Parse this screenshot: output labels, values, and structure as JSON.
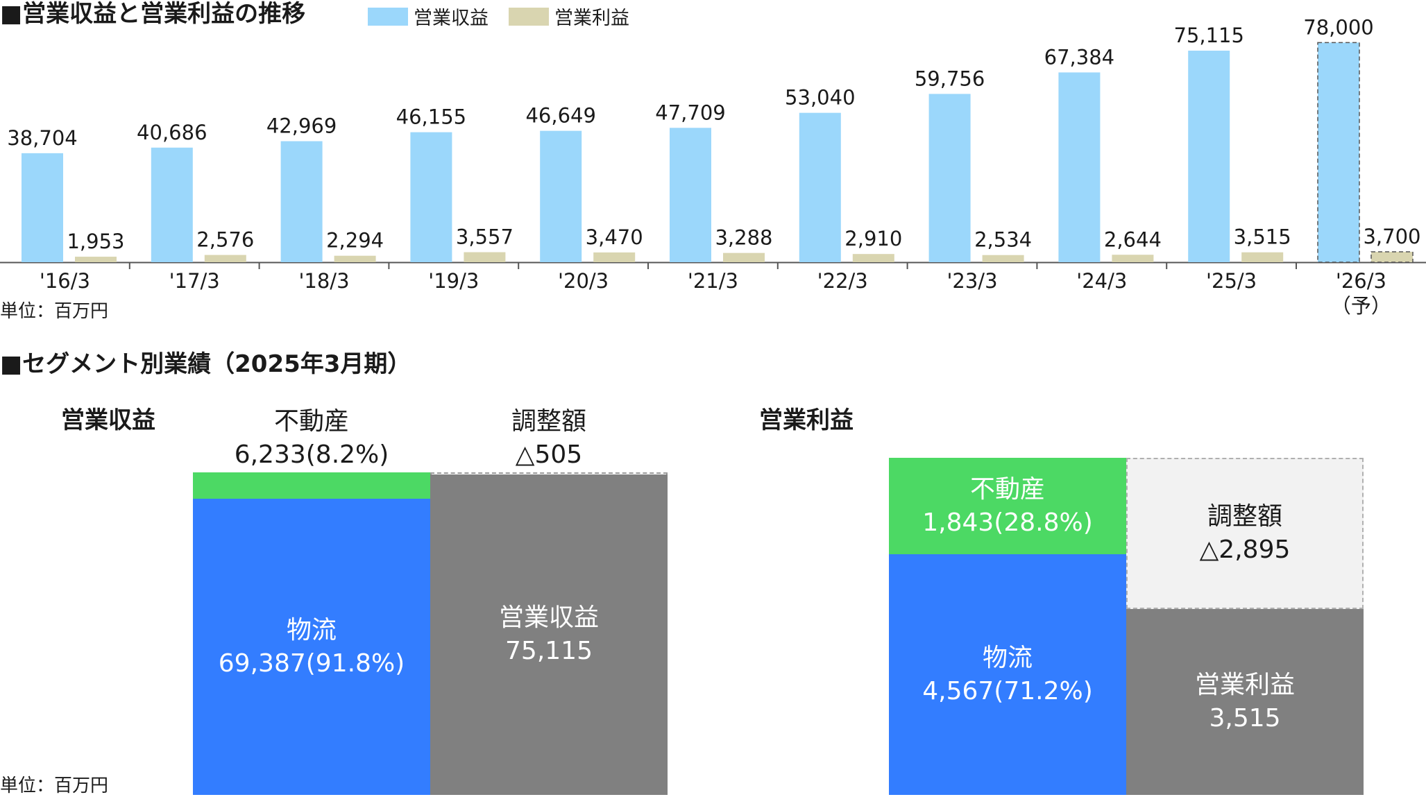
{
  "top": {
    "title": "■営業収益と営業利益の推移",
    "unit": "単位：百万円"
  },
  "bottom": {
    "title": "■セグメント別業績（2025年3月期）",
    "unit": "単位：百万円"
  },
  "colors": {
    "revenue": "#9bd7fb",
    "profit": "#d9d5b0",
    "real_estate": "#4cd964",
    "logistics": "#337dff",
    "total": "#808080",
    "adjustment_profit": "#f2f2f2"
  },
  "chart_data": [
    {
      "type": "bar",
      "title": "■営業収益と営業利益の推移",
      "categories": [
        "'16/3",
        "'17/3",
        "'18/3",
        "'19/3",
        "'20/3",
        "'21/3",
        "'22/3",
        "'23/3",
        "'24/3",
        "'25/3",
        "'26/3"
      ],
      "category_notes": [
        "",
        "",
        "",
        "",
        "",
        "",
        "",
        "",
        "",
        "",
        "（予）"
      ],
      "series": [
        {
          "name": "営業収益",
          "values": [
            38704,
            40686,
            42969,
            46155,
            46649,
            47709,
            53040,
            59756,
            67384,
            75115,
            78000
          ],
          "labels": [
            "38,704",
            "40,686",
            "42,969",
            "46,155",
            "46,649",
            "47,709",
            "53,040",
            "59,756",
            "67,384",
            "75,115",
            "78,000"
          ]
        },
        {
          "name": "営業利益",
          "values": [
            1953,
            2576,
            2294,
            3557,
            3470,
            3288,
            2910,
            2534,
            2644,
            3515,
            3700
          ],
          "labels": [
            "1,953",
            "2,576",
            "2,294",
            "3,557",
            "3,470",
            "3,288",
            "2,910",
            "2,534",
            "2,644",
            "3,515",
            "3,700"
          ]
        }
      ],
      "forecast_index": 10,
      "ylim": [
        0,
        85000
      ],
      "grid": false,
      "legend_position": "top"
    },
    {
      "type": "stacked-bar",
      "title": "営業収益",
      "segments": [
        {
          "name": "物流",
          "value": 69387,
          "label": "69,387(91.8%)"
        },
        {
          "name": "不動産",
          "value": 6233,
          "label": "6,233(8.2%)"
        },
        {
          "name": "調整額",
          "value": -505,
          "label": "△505"
        }
      ],
      "total": {
        "name": "営業収益",
        "value": 75115,
        "label": "75,115"
      }
    },
    {
      "type": "stacked-bar",
      "title": "営業利益",
      "segments": [
        {
          "name": "物流",
          "value": 4567,
          "label": "4,567(71.2%)"
        },
        {
          "name": "不動産",
          "value": 1843,
          "label": "1,843(28.8%)"
        },
        {
          "name": "調整額",
          "value": -2895,
          "label": "△2,895"
        }
      ],
      "total": {
        "name": "営業利益",
        "value": 3515,
        "label": "3,515"
      }
    }
  ]
}
